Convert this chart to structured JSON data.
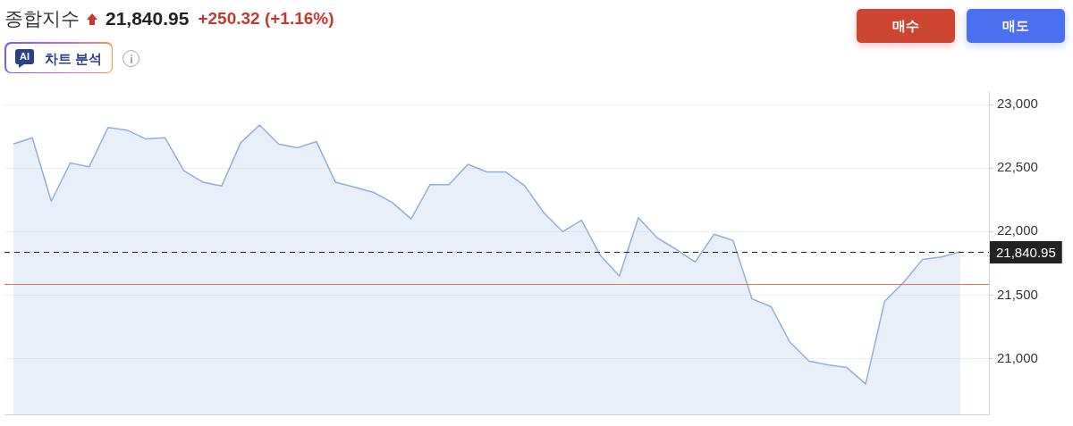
{
  "chart_data": {
    "type": "area",
    "title": "종합지수",
    "annotations": [
      "21,840.95",
      "+250.32 (+1.16%)",
      "AI",
      "차트 분석",
      "매수",
      "매도"
    ],
    "categories": [
      null,
      null,
      null,
      null,
      null,
      null,
      null,
      null,
      null,
      null,
      null,
      null,
      null,
      null,
      null,
      null,
      null,
      null,
      null,
      null,
      null,
      null,
      null,
      null,
      null,
      null,
      null,
      null,
      null,
      null,
      null,
      null,
      null,
      null,
      null,
      null,
      null,
      null,
      null,
      null,
      null,
      null,
      null,
      null,
      null,
      null,
      null,
      null,
      null,
      null,
      null
    ],
    "series": [
      {
        "color": "#8fb0da",
        "values": [
          22690,
          22740,
          22240,
          22540,
          22510,
          22820,
          22800,
          22730,
          22740,
          22480,
          22390,
          22360,
          22700,
          22840,
          22690,
          22660,
          22710,
          22390,
          22350,
          22310,
          22230,
          22100,
          22370,
          22370,
          22530,
          22470,
          22470,
          22360,
          22150,
          22000,
          22090,
          21810,
          21650,
          22110,
          21950,
          21860,
          21760,
          21980,
          21930,
          21470,
          21410,
          21130,
          20980,
          20950,
          20930,
          20800,
          21450,
          21600,
          21780,
          21800,
          21840
        ]
      }
    ],
    "ylim": [
      20560,
      23100
    ],
    "yticks": [
      {
        "value": 21000,
        "label": "21,000"
      },
      {
        "value": 21500,
        "label": "21,500"
      },
      {
        "value": 22000,
        "label": "22,000"
      },
      {
        "value": 22500,
        "label": "22,500"
      },
      {
        "value": 23000,
        "label": "23,000"
      }
    ],
    "grid": "y",
    "ref_lines": [
      {
        "axis": "y",
        "value": 21840.95,
        "label": "21,840.95",
        "color": "#222222",
        "line_style": "dashed"
      },
      {
        "axis": "y",
        "value": 21590,
        "color": "#e8705f",
        "line_style": "solid"
      }
    ]
  }
}
